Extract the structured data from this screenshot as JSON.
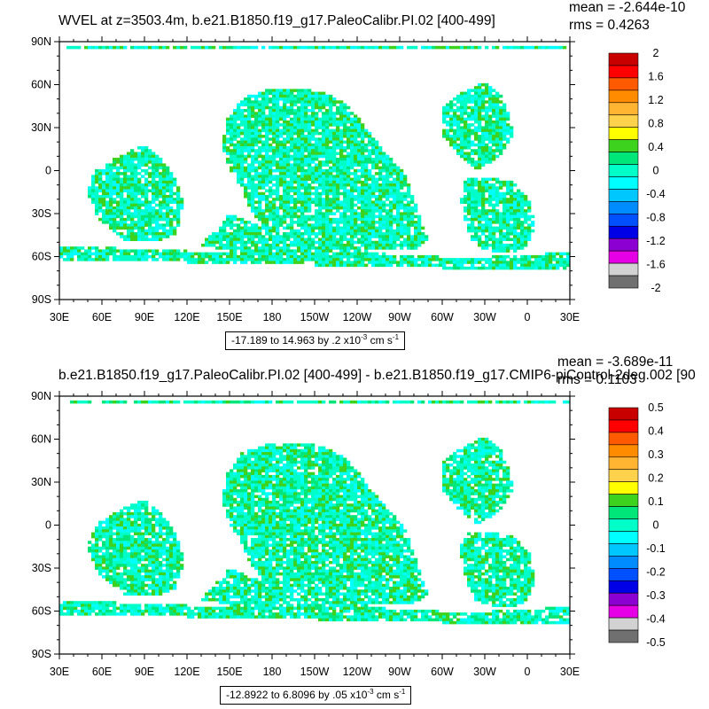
{
  "panels": [
    {
      "title": "WVEL at z=3503.4m, b.e21.B1850.f19_g17.PaleoCalibr.PI.02 [400-499]",
      "mean": "mean = -2.644e-10",
      "rms": "rms = 0.4263",
      "range": {
        "text": "-17.189 to 14.963 by .2 x10",
        "exponent": "-3",
        "unit": " cm s",
        "unit_exponent": "-1"
      },
      "colorbar_labels": [
        "2",
        "1.6",
        "1.2",
        "0.8",
        "0.4",
        "0",
        "-0.4",
        "-0.8",
        "-1.2",
        "-1.6",
        "-2"
      ]
    },
    {
      "title": "b.e21.B1850.f19_g17.PaleoCalibr.PI.02 [400-499] - b.e21.B1850.f19_g17.CMIP6-piControl-2deg.002 [90",
      "mean": "mean = -3.689e-11",
      "rms": "rms = 0.1103",
      "range": {
        "text": "-12.8922 to 6.8096 by .05 x10",
        "exponent": "-3",
        "unit": " cm s",
        "unit_exponent": "-1"
      },
      "colorbar_labels": [
        "0.5",
        "0.4",
        "0.3",
        "0.2",
        "0.1",
        "0",
        "-0.1",
        "-0.2",
        "-0.3",
        "-0.4",
        "-0.5"
      ]
    }
  ],
  "axes": {
    "lat_labels": [
      "90N",
      "60N",
      "30N",
      "0",
      "30S",
      "60S",
      "90S"
    ],
    "lon_labels": [
      "30E",
      "60E",
      "90E",
      "120E",
      "150E",
      "180",
      "150W",
      "120W",
      "90W",
      "60W",
      "30W",
      "0",
      "30E"
    ]
  },
  "colorbar_colors": [
    "#c80000",
    "#ff0000",
    "#ff5a00",
    "#ff8c00",
    "#ffb432",
    "#ffd24b",
    "#ffff00",
    "#3cd21e",
    "#00e678",
    "#00ffc8",
    "#00ffff",
    "#00c8ff",
    "#008cff",
    "#0050ff",
    "#0000e6",
    "#8c00d2",
    "#e600e6",
    "#d2d2d2",
    "#707070"
  ],
  "map_colors": {
    "background": "#ffffff",
    "field_main": "#00ffc8",
    "field_cyan": "#00ffff",
    "field_green": "#3cd21e",
    "field_seafoam": "#00e678"
  }
}
